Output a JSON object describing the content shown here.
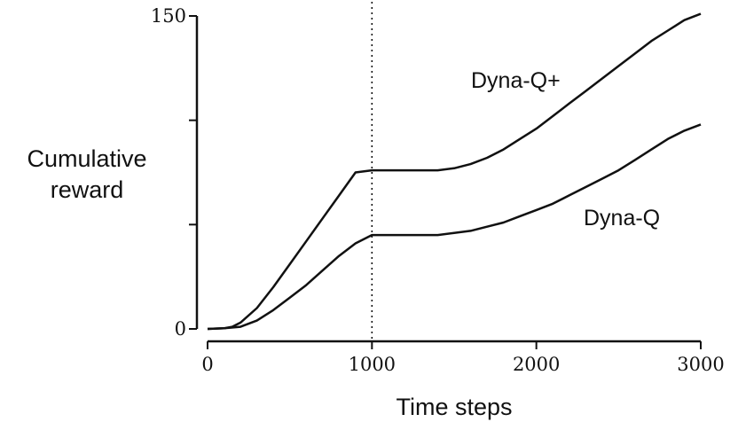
{
  "chart_data": {
    "type": "line",
    "title": "",
    "xlabel": "Time steps",
    "ylabel_lines": [
      "Cumulative",
      "reward"
    ],
    "xlim": [
      0,
      3000
    ],
    "ylim": [
      0,
      150
    ],
    "x_ticks": [
      0,
      1000,
      2000,
      3000
    ],
    "x_tick_labels": [
      "0",
      "1000",
      "2000",
      "3000"
    ],
    "y_ticks": [
      0,
      50,
      100,
      150
    ],
    "y_tick_labels": [
      "0",
      "",
      "",
      "150"
    ],
    "grid": false,
    "vertical_marker_x": 1000,
    "series": [
      {
        "name": "Dyna-Q+",
        "x": [
          0,
          100,
          150,
          200,
          300,
          400,
          500,
          600,
          700,
          800,
          900,
          1000,
          1100,
          1200,
          1300,
          1400,
          1500,
          1600,
          1700,
          1800,
          1900,
          2000,
          2100,
          2200,
          2300,
          2400,
          2500,
          2600,
          2700,
          2800,
          2900,
          3000
        ],
        "values": [
          0,
          0.3,
          1,
          3,
          10,
          20,
          31,
          42,
          53,
          64,
          75,
          76,
          76,
          76,
          76,
          76,
          77,
          79,
          82,
          86,
          91,
          96,
          102,
          108,
          114,
          120,
          126,
          132,
          138,
          143,
          148,
          151
        ]
      },
      {
        "name": "Dyna-Q",
        "x": [
          0,
          100,
          200,
          300,
          400,
          500,
          600,
          700,
          800,
          900,
          1000,
          1100,
          1200,
          1300,
          1400,
          1500,
          1600,
          1700,
          1800,
          1900,
          2000,
          2100,
          2200,
          2300,
          2400,
          2500,
          2600,
          2700,
          2800,
          2900,
          3000
        ],
        "values": [
          0,
          0.3,
          1,
          4,
          9,
          15,
          21,
          28,
          35,
          41,
          45,
          45,
          45,
          45,
          45,
          46,
          47,
          49,
          51,
          54,
          57,
          60,
          64,
          68,
          72,
          76,
          81,
          86,
          91,
          95,
          98
        ]
      }
    ],
    "annotations": [
      {
        "text": "Dyna-Q+",
        "series": "Dyna-Q+"
      },
      {
        "text": "Dyna-Q",
        "series": "Dyna-Q"
      }
    ]
  }
}
